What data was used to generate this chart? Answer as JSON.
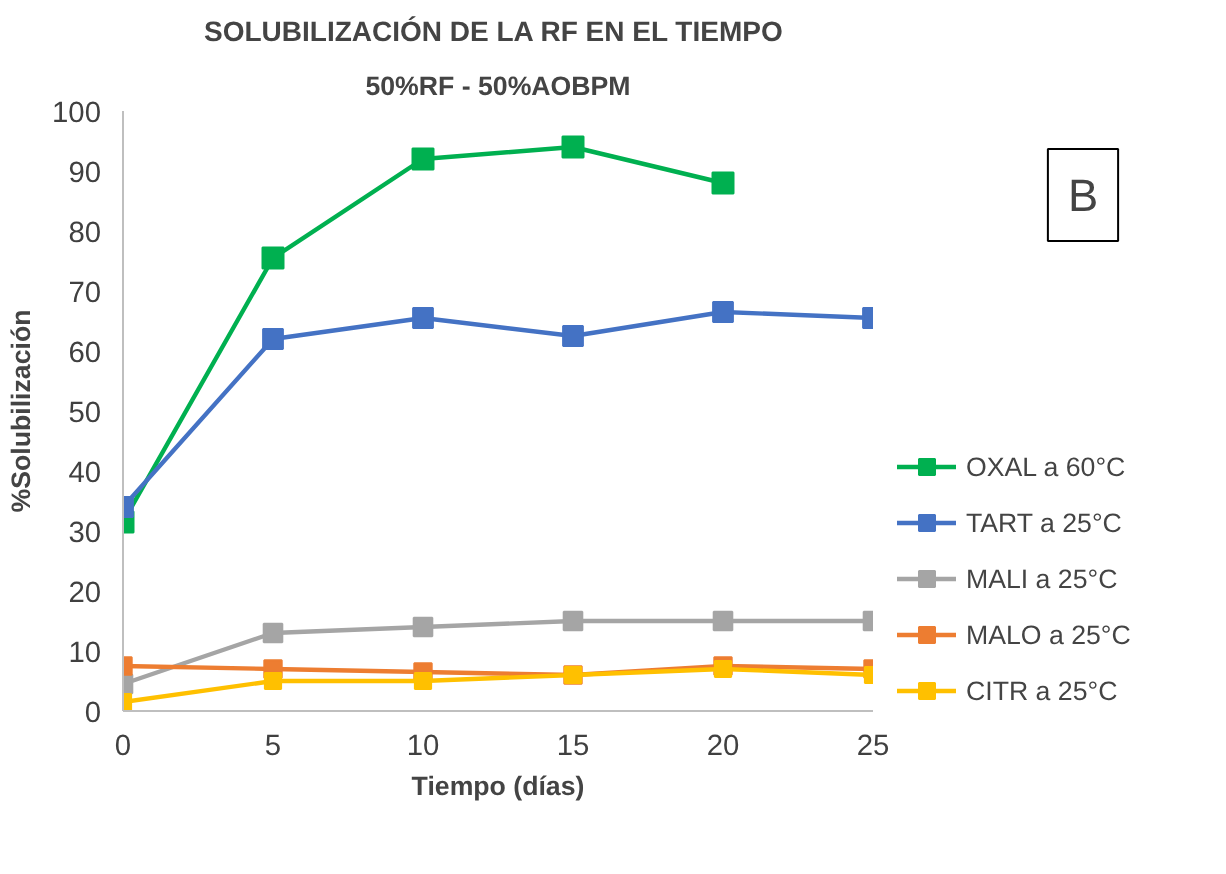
{
  "chart_data": {
    "type": "line",
    "title": "SOLUBILIZACIÓN  DE LA RF EN EL TIEMPO",
    "subtitle": "50%RF - 50%AOBPM",
    "xlabel": "Tiempo (días)",
    "ylabel": "%Solubilización",
    "x": [
      0,
      5,
      10,
      15,
      20,
      25
    ],
    "xlim": [
      0,
      25
    ],
    "xticks": [
      0,
      5,
      10,
      15,
      20,
      25
    ],
    "ylim": [
      0,
      100
    ],
    "yticks": [
      0,
      10,
      20,
      30,
      40,
      50,
      60,
      70,
      80,
      90,
      100
    ],
    "series": [
      {
        "name": "OXAL a 60°C",
        "color": "#00b050",
        "values": [
          31.5,
          75.5,
          92,
          94,
          88,
          null
        ]
      },
      {
        "name": "TART a 25°C",
        "color": "#4472c4",
        "values": [
          34,
          62,
          65.5,
          62.5,
          66.5,
          65.5
        ]
      },
      {
        "name": "MALI a 25°C",
        "color": "#a5a5a5",
        "values": [
          4.5,
          13,
          14,
          15,
          15,
          15
        ]
      },
      {
        "name": "MALO a 25°C",
        "color": "#ed7d31",
        "values": [
          7.5,
          7,
          6.5,
          6,
          7.5,
          7
        ]
      },
      {
        "name": "CITR a 25°C",
        "color": "#ffc000",
        "values": [
          1.5,
          5,
          5,
          6,
          7,
          6
        ]
      }
    ],
    "annotations": [
      "B"
    ],
    "marker": "square",
    "grid": false,
    "legend": "right"
  }
}
